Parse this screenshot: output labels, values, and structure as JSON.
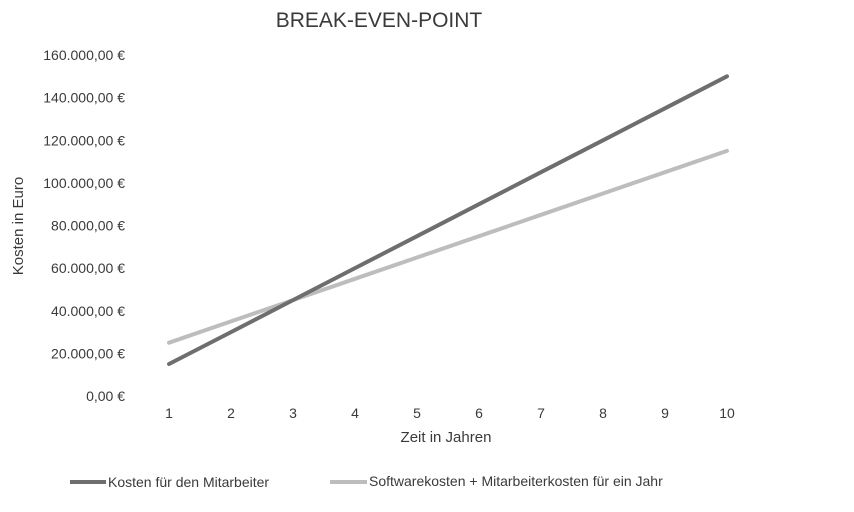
{
  "chart_data": {
    "type": "line",
    "title": "BREAK-EVEN-POINT",
    "xlabel": "Zeit in Jahren",
    "ylabel": "Kosten in Euro",
    "x": [
      1,
      2,
      3,
      4,
      5,
      6,
      7,
      8,
      9,
      10
    ],
    "x_tick_labels": [
      "1",
      "2",
      "3",
      "4",
      "5",
      "6",
      "7",
      "8",
      "9",
      "10"
    ],
    "y_ticks": [
      0,
      20000,
      40000,
      60000,
      80000,
      100000,
      120000,
      140000,
      160000
    ],
    "y_tick_labels": [
      "0,00 €",
      "20.000,00 €",
      "40.000,00 €",
      "60.000,00 €",
      "80.000,00 €",
      "100.000,00 €",
      "120.000,00 €",
      "140.000,00 €",
      "160.000,00 €"
    ],
    "ylim": [
      0,
      160000
    ],
    "grid": false,
    "legend_position": "bottom",
    "series": [
      {
        "name": "Kosten für den Mitarbeiter",
        "color": "#6e6e6e",
        "values": [
          15000,
          30000,
          45000,
          60000,
          75000,
          90000,
          105000,
          120000,
          135000,
          150000
        ]
      },
      {
        "name": "Softwarekosten + Mitarbeiterkosten für ein Jahr",
        "color": "#bdbdbd",
        "values": [
          25000,
          35000,
          45000,
          55000,
          65000,
          75000,
          85000,
          95000,
          105000,
          115000
        ]
      }
    ]
  }
}
